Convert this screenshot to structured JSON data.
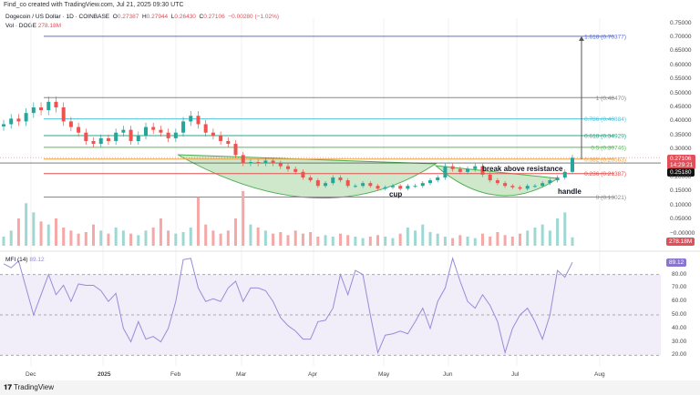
{
  "header": {
    "created": "Find_co created with TradingView.com, Jul 21, 2025 09:30 UTC",
    "symbol": "Dogecoin / US Dollar · 1D · COINBASE",
    "o_label": "O",
    "o": "0.27387",
    "h_label": "H",
    "h": "0.27944",
    "l_label": "L",
    "l": "0.26430",
    "c_label": "C",
    "c": "0.27106",
    "change": "−0.00280 (−1.02%)",
    "vol_label": "Vol · DOGE",
    "vol": "278.18M"
  },
  "price_axis": [
    "0.75000",
    "0.70000",
    "0.65000",
    "0.60000",
    "0.55000",
    "0.50000",
    "0.45000",
    "0.40000",
    "0.35000",
    "0.30000",
    "0.20000",
    "0.15000",
    "0.10000",
    "0.05000",
    "−0.00000"
  ],
  "mfi_axis": [
    "80.00",
    "70.00",
    "60.00",
    "50.00",
    "40.00",
    "30.00",
    "20.00"
  ],
  "time_axis": [
    {
      "label": "Dec",
      "bold": false
    },
    {
      "label": "2025",
      "bold": true
    },
    {
      "label": "Feb",
      "bold": false
    },
    {
      "label": "Mar",
      "bold": false
    },
    {
      "label": "Apr",
      "bold": false
    },
    {
      "label": "May",
      "bold": false
    },
    {
      "label": "Jun",
      "bold": false
    },
    {
      "label": "Jul",
      "bold": false
    },
    {
      "label": "Aug",
      "bold": false
    }
  ],
  "tags": {
    "last_price": "0.27106",
    "countdown": "14:29:21",
    "prev": "0.25180",
    "volume": "278.18M",
    "mfi": "89.12"
  },
  "mfi_label": "MFI (14)",
  "mfi_value": "89.12",
  "annotations": {
    "cup": "cup",
    "break": "break above resistance",
    "handle": "handle"
  },
  "footer": "TradingView",
  "colors": {
    "up": "#26a69a",
    "down": "#ef5350",
    "mfi": "#9c8ad6"
  },
  "chart_data": {
    "type": "candlestick",
    "title": "Dogecoin / US Dollar · 1D · COINBASE",
    "fib_levels": [
      {
        "label": "1.618 (0.70377)",
        "value": 0.70377,
        "color": "#5b6fd6"
      },
      {
        "label": "1 (0.48470)",
        "value": 0.4847,
        "color": "#888888"
      },
      {
        "label": "0.786 (0.40884)",
        "value": 0.40884,
        "color": "#4fc3d8"
      },
      {
        "label": "0.618 (0.34929)",
        "value": 0.34929,
        "color": "#2aa889"
      },
      {
        "label": "0.5 (0.30746)",
        "value": 0.30746,
        "color": "#5cb85c"
      },
      {
        "label": "0.382 (0.26563)",
        "value": 0.26563,
        "color": "#f0a040"
      },
      {
        "label": "0.236 (0.21387)",
        "value": 0.21387,
        "color": "#e05050"
      },
      {
        "label": "0 (0.13021)",
        "value": 0.13021,
        "color": "#888888"
      }
    ],
    "closes": [
      0.39,
      0.41,
      0.4,
      0.43,
      0.45,
      0.44,
      0.47,
      0.45,
      0.4,
      0.38,
      0.36,
      0.33,
      0.32,
      0.34,
      0.33,
      0.36,
      0.37,
      0.33,
      0.35,
      0.38,
      0.37,
      0.36,
      0.34,
      0.36,
      0.4,
      0.42,
      0.39,
      0.36,
      0.35,
      0.33,
      0.32,
      0.28,
      0.25,
      0.255,
      0.25,
      0.26,
      0.25,
      0.24,
      0.23,
      0.22,
      0.2,
      0.19,
      0.17,
      0.18,
      0.2,
      0.19,
      0.17,
      0.17,
      0.18,
      0.17,
      0.16,
      0.165,
      0.17,
      0.16,
      0.17,
      0.17,
      0.18,
      0.19,
      0.2,
      0.24,
      0.23,
      0.22,
      0.23,
      0.24,
      0.21,
      0.19,
      0.18,
      0.17,
      0.165,
      0.16,
      0.17,
      0.17,
      0.18,
      0.19,
      0.2,
      0.22,
      0.27
    ],
    "volume_millions": [
      300,
      500,
      900,
      1400,
      1100,
      800,
      700,
      900,
      600,
      500,
      400,
      450,
      700,
      500,
      400,
      600,
      500,
      400,
      350,
      500,
      600,
      900,
      500,
      400,
      450,
      600,
      1600,
      700,
      500,
      400,
      500,
      900,
      1800,
      700,
      600,
      500,
      400,
      450,
      350,
      500,
      400,
      450,
      300,
      350,
      300,
      400,
      350,
      300,
      250,
      300,
      350,
      300,
      250,
      400,
      600,
      500,
      700,
      450,
      400,
      300,
      250,
      350,
      300,
      250,
      400,
      300,
      450,
      350,
      300,
      400,
      500,
      600,
      700,
      500,
      900,
      1100,
      278
    ],
    "mfi": [
      88,
      85,
      90,
      70,
      50,
      65,
      80,
      65,
      72,
      60,
      73,
      72,
      72,
      68,
      60,
      66,
      40,
      30,
      45,
      32,
      34,
      30,
      40,
      60,
      91,
      92,
      70,
      60,
      62,
      60,
      70,
      75,
      60,
      70,
      70,
      68,
      60,
      48,
      42,
      38,
      32,
      32,
      45,
      46,
      55,
      80,
      65,
      83,
      80,
      50,
      22,
      35,
      36,
      38,
      36,
      45,
      55,
      40,
      60,
      70,
      92,
      75,
      60,
      55,
      65,
      57,
      45,
      22,
      40,
      50,
      55,
      45,
      32,
      50,
      83,
      78,
      89
    ],
    "ylim": [
      0,
      0.75
    ],
    "mfi_ylim": [
      20,
      80
    ]
  }
}
